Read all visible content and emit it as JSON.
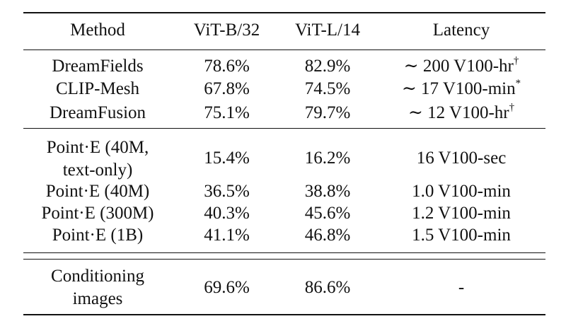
{
  "table": {
    "headers": [
      "Method",
      "ViT-B/32",
      "ViT-L/14",
      "Latency"
    ],
    "groups": [
      {
        "rows": [
          {
            "method": "DreamFields",
            "vitb": "78.6%",
            "vitl": "82.9%",
            "latency": "∼ 200 V100-hr",
            "latency_mark": "†"
          },
          {
            "method": "CLIP-Mesh",
            "vitb": "67.8%",
            "vitl": "74.5%",
            "latency": "∼ 17 V100-min",
            "latency_mark": "*"
          },
          {
            "method": "DreamFusion",
            "vitb": "75.1%",
            "vitl": "79.7%",
            "latency": "∼ 12 V100-hr",
            "latency_mark": "†"
          }
        ]
      },
      {
        "rows": [
          {
            "method_line1": "Point·E (40M,",
            "method_line2": "text-only)",
            "vitb": "15.4%",
            "vitl": "16.2%",
            "latency": "16 V100-sec"
          },
          {
            "method": "Point·E (40M)",
            "vitb": "36.5%",
            "vitl": "38.8%",
            "latency": "1.0 V100-min"
          },
          {
            "method": "Point·E (300M)",
            "vitb": "40.3%",
            "vitl": "45.6%",
            "latency": "1.2 V100-min"
          },
          {
            "method": "Point·E (1B)",
            "vitb": "41.1%",
            "vitl": "46.8%",
            "latency": "1.5 V100-min"
          }
        ]
      },
      {
        "rows": [
          {
            "method_line1": "Conditioning",
            "method_line2": "images",
            "vitb": "69.6%",
            "vitl": "86.6%",
            "latency": "-"
          }
        ]
      }
    ]
  }
}
